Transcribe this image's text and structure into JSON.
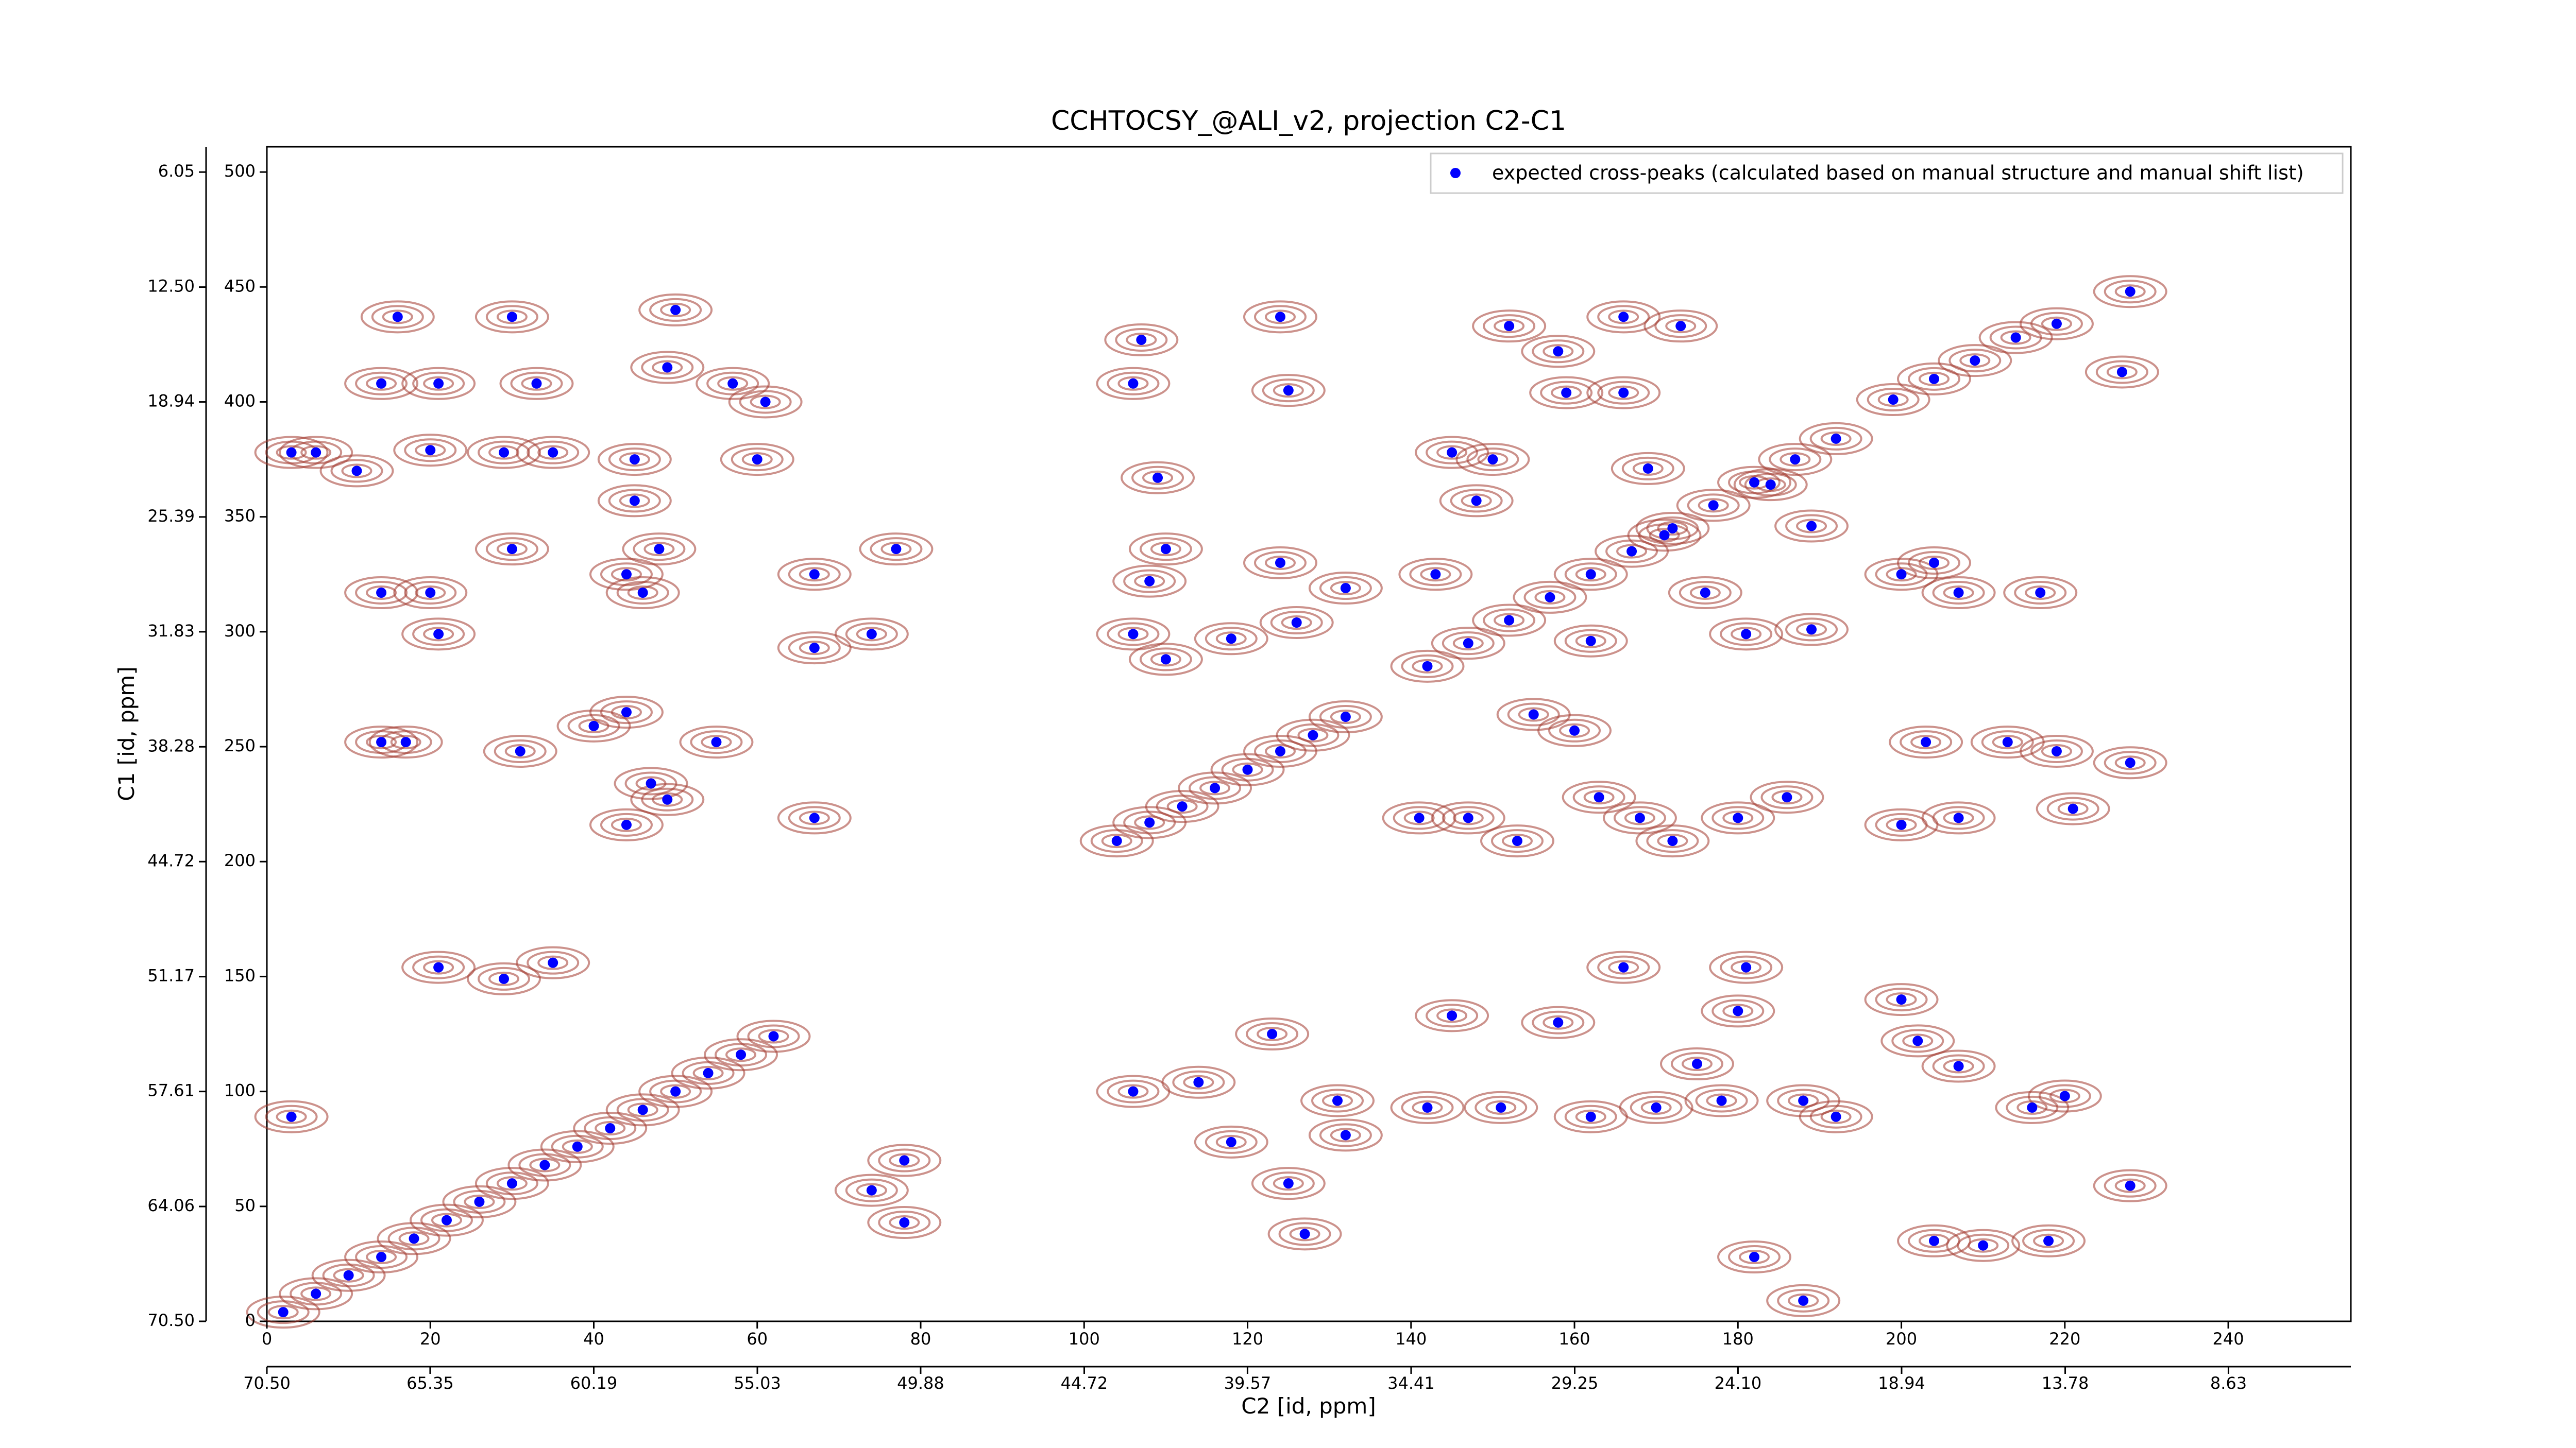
{
  "chart_data": {
    "type": "scatter",
    "title": "CCHTOCSY_@ALI_v2, projection C2-C1",
    "x_label": "C2 [id, ppm]",
    "y_label": "C1 [id, ppm]",
    "xlim": [
      0,
      255
    ],
    "xticks": [
      0,
      20,
      40,
      60,
      80,
      100,
      120,
      140,
      160,
      180,
      200,
      220,
      240
    ],
    "x2lim": [
      70.5,
      4.77
    ],
    "x2ticks": [
      {
        "value": 70.5,
        "label": "70.50"
      },
      65.35,
      60.19,
      55.03,
      49.88,
      44.72,
      39.57,
      34.41,
      29.25,
      {
        "value": 24.1,
        "label": "24.10"
      },
      18.94,
      13.78,
      8.63
    ],
    "ylim": [
      0,
      511
    ],
    "yticks": [
      0,
      50,
      100,
      150,
      200,
      250,
      300,
      350,
      400,
      450,
      500
    ],
    "y2lim": [
      70.5,
      4.63
    ],
    "y2ticks": [
      {
        "value": 70.5,
        "label": "70.50"
      },
      64.06,
      57.61,
      51.17,
      44.72,
      38.28,
      31.83,
      25.39,
      18.94,
      {
        "value": 12.5,
        "label": "12.50"
      },
      6.05
    ],
    "legend": "upper right",
    "series": [
      {
        "name": "expected cross-peaks (calculated based on manual structure and manual shift list)",
        "color": "#0000ff",
        "x": [
          2,
          6,
          10,
          14,
          18,
          22,
          26,
          30,
          34,
          38,
          42,
          46,
          50,
          54,
          58,
          62,
          104,
          108,
          112,
          116,
          120,
          124,
          128,
          132,
          142,
          147,
          152,
          157,
          162,
          167,
          172,
          177,
          182,
          187,
          192,
          199,
          204,
          209,
          214,
          219,
          16,
          14,
          21,
          30,
          33,
          50,
          49,
          57,
          61,
          3,
          6,
          11,
          20,
          29,
          35,
          45,
          60,
          45,
          48,
          44,
          46,
          14,
          20,
          30,
          21,
          67,
          77,
          74,
          67,
          14,
          17,
          31,
          40,
          44,
          55,
          47,
          49,
          44,
          67,
          21,
          29,
          35,
          3,
          74,
          78,
          78,
          107,
          124,
          125,
          106,
          109,
          110,
          108,
          106,
          110,
          124,
          132,
          126,
          118,
          106,
          114,
          123,
          131,
          132,
          125,
          127,
          118,
          152,
          158,
          166,
          173,
          159,
          166,
          145,
          150,
          148,
          169,
          171,
          184,
          189,
          143,
          162,
          176,
          181,
          189,
          155,
          160,
          141,
          147,
          153,
          163,
          168,
          180,
          186,
          172,
          145,
          158,
          166,
          180,
          181,
          142,
          151,
          162,
          170,
          178,
          188,
          192,
          175,
          200,
          202,
          207,
          200,
          207,
          217,
          204,
          203,
          213,
          219,
          228,
          200,
          207,
          221,
          228,
          227,
          204,
          210,
          218,
          188,
          182,
          228,
          220,
          216
        ],
        "values": [
          4,
          12,
          20,
          28,
          36,
          44,
          52,
          60,
          68,
          76,
          84,
          92,
          100,
          108,
          116,
          124,
          209,
          217,
          224,
          232,
          240,
          248,
          255,
          263,
          285,
          295,
          305,
          315,
          325,
          335,
          345,
          355,
          365,
          375,
          384,
          401,
          410,
          418,
          428,
          434,
          437,
          408,
          408,
          437,
          408,
          440,
          415,
          408,
          400,
          378,
          378,
          370,
          379,
          378,
          378,
          375,
          375,
          357,
          336,
          325,
          317,
          317,
          317,
          336,
          299,
          325,
          336,
          299,
          293,
          252,
          252,
          248,
          259,
          265,
          252,
          234,
          227,
          216,
          219,
          154,
          149,
          156,
          89,
          57,
          43,
          70,
          427,
          437,
          405,
          408,
          367,
          336,
          322,
          299,
          288,
          330,
          319,
          304,
          297,
          100,
          104,
          125,
          96,
          81,
          60,
          38,
          78,
          433,
          422,
          437,
          433,
          404,
          404,
          378,
          375,
          357,
          371,
          342,
          364,
          346,
          325,
          296,
          317,
          299,
          301,
          264,
          257,
          219,
          219,
          209,
          228,
          219,
          219,
          228,
          209,
          133,
          130,
          154,
          135,
          154,
          93,
          93,
          89,
          93,
          96,
          96,
          89,
          112,
          140,
          122,
          111,
          325,
          317,
          317,
          330,
          252,
          252,
          248,
          243,
          216,
          219,
          223,
          448,
          413,
          35,
          33,
          35,
          9,
          28,
          59,
          98,
          93
        ]
      }
    ]
  }
}
